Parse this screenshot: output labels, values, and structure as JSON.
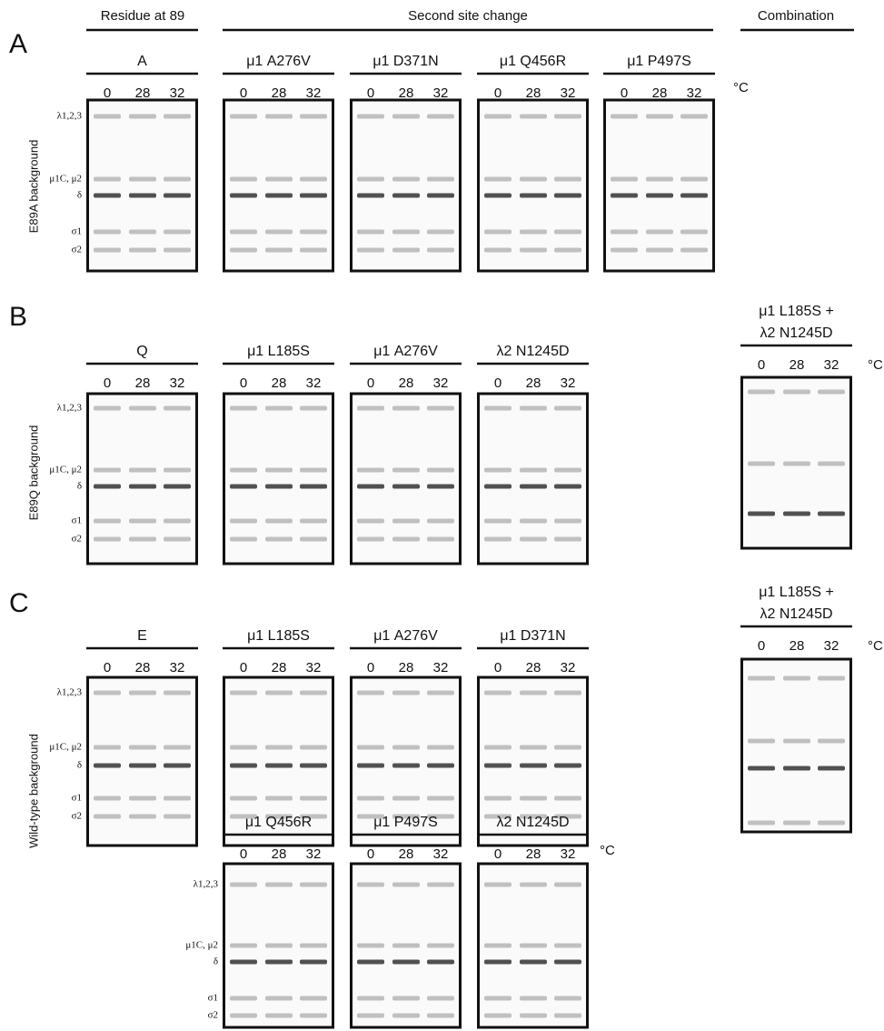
{
  "headers": {
    "residue": "Residue at 89",
    "second_site": "Second site change",
    "combination": "Combination"
  },
  "lanes": [
    "0",
    "28",
    "32"
  ],
  "unit": "°C",
  "band_labels": [
    "λ1,2,3",
    "μ1C, μ2",
    "δ",
    "σ1",
    "σ2"
  ],
  "panels": [
    {
      "letter": "A",
      "background": "E89A background",
      "gels": [
        {
          "label": [
            "A"
          ]
        },
        {
          "label": [
            "μ1 A276V"
          ]
        },
        {
          "label": [
            "μ1 D371N"
          ]
        },
        {
          "label": [
            "μ1 Q456R"
          ]
        },
        {
          "label": [
            "μ1 P497S"
          ]
        }
      ]
    },
    {
      "letter": "B",
      "background": "E89Q background",
      "gels": [
        {
          "label": [
            "Q"
          ]
        },
        {
          "label": [
            "μ1 L185S"
          ]
        },
        {
          "label": [
            "μ1 A276V"
          ]
        },
        {
          "label": [
            "λ2 N1245D"
          ]
        },
        {
          "label": [
            "μ1 L185S +",
            "λ2 N1245D"
          ]
        }
      ]
    },
    {
      "letter": "C",
      "background": "Wild-type background",
      "gels": [
        {
          "label": [
            "E"
          ]
        },
        {
          "label": [
            "μ1 L185S"
          ]
        },
        {
          "label": [
            "μ1 A276V"
          ]
        },
        {
          "label": [
            "μ1 D371N"
          ]
        },
        {
          "label": [
            "μ1 L185S +",
            "λ2 N1245D"
          ]
        },
        {
          "label": [
            "μ1 Q456R"
          ]
        },
        {
          "label": [
            "μ1 P497S"
          ]
        },
        {
          "label": [
            "λ2 N1245D"
          ]
        }
      ]
    }
  ]
}
